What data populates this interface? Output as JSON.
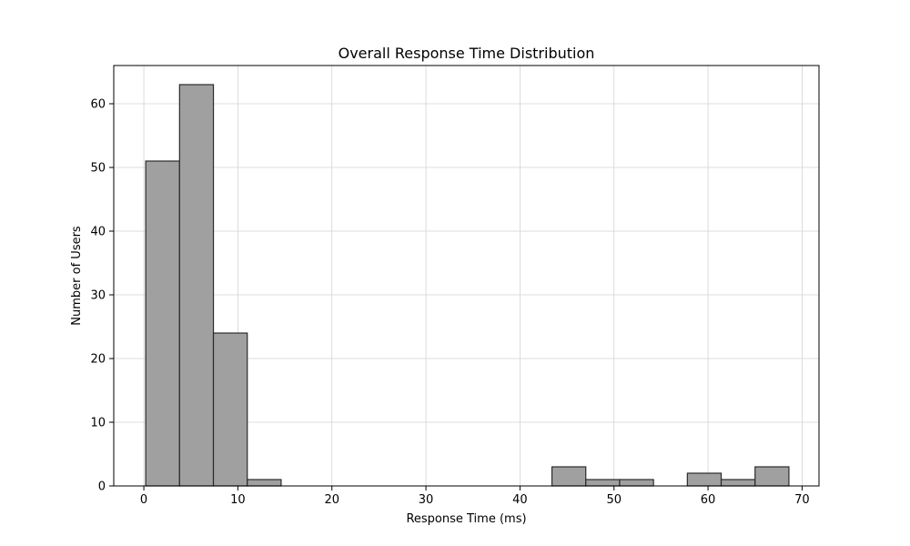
{
  "chart_data": {
    "type": "bar",
    "title": "Overall Response Time Distribution",
    "xlabel": "Response Time (ms)",
    "ylabel": "Number of Users",
    "xlim": [
      -3.2,
      71.8
    ],
    "ylim": [
      0,
      66
    ],
    "xticks": [
      0,
      10,
      20,
      30,
      40,
      50,
      60,
      70
    ],
    "yticks": [
      0,
      10,
      20,
      30,
      40,
      50,
      60
    ],
    "grid": true,
    "bins": [
      {
        "x0": 0.2,
        "x1": 3.8,
        "count": 51
      },
      {
        "x0": 3.8,
        "x1": 7.4,
        "count": 63
      },
      {
        "x0": 7.4,
        "x1": 11.0,
        "count": 24
      },
      {
        "x0": 11.0,
        "x1": 14.6,
        "count": 1
      },
      {
        "x0": 14.6,
        "x1": 18.2,
        "count": 0
      },
      {
        "x0": 18.2,
        "x1": 21.8,
        "count": 0
      },
      {
        "x0": 21.8,
        "x1": 25.4,
        "count": 0
      },
      {
        "x0": 25.4,
        "x1": 29.0,
        "count": 0
      },
      {
        "x0": 29.0,
        "x1": 32.6,
        "count": 0
      },
      {
        "x0": 32.6,
        "x1": 36.2,
        "count": 0
      },
      {
        "x0": 36.2,
        "x1": 39.8,
        "count": 0
      },
      {
        "x0": 39.8,
        "x1": 43.4,
        "count": 0
      },
      {
        "x0": 43.4,
        "x1": 47.0,
        "count": 3
      },
      {
        "x0": 47.0,
        "x1": 50.6,
        "count": 1
      },
      {
        "x0": 50.6,
        "x1": 54.2,
        "count": 1
      },
      {
        "x0": 54.2,
        "x1": 57.8,
        "count": 0
      },
      {
        "x0": 57.8,
        "x1": 61.4,
        "count": 2
      },
      {
        "x0": 61.4,
        "x1": 65.0,
        "count": 1
      },
      {
        "x0": 65.0,
        "x1": 68.6,
        "count": 3
      }
    ],
    "bar_fill": "#a0a0a0",
    "bar_edge": "#2b2b2b",
    "grid_color": "#d3d3d3"
  }
}
